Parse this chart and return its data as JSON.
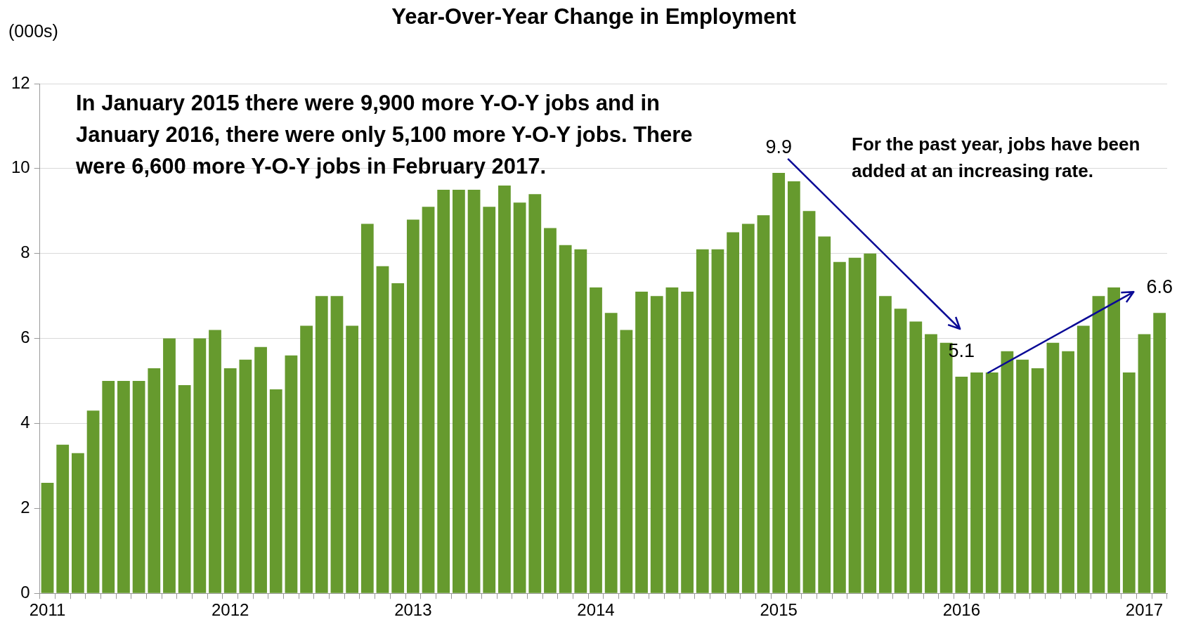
{
  "chart_data": {
    "type": "bar",
    "title": "Year-Over-Year Change in Employment",
    "ylabel": "(000s)",
    "categories": [
      "2011",
      null,
      null,
      null,
      null,
      null,
      null,
      null,
      null,
      null,
      null,
      null,
      "2012",
      null,
      null,
      null,
      null,
      null,
      null,
      null,
      null,
      null,
      null,
      null,
      "2013",
      null,
      null,
      null,
      null,
      null,
      null,
      null,
      null,
      null,
      null,
      null,
      "2014",
      null,
      null,
      null,
      null,
      null,
      null,
      null,
      null,
      null,
      null,
      null,
      "2015",
      null,
      null,
      null,
      null,
      null,
      null,
      null,
      null,
      null,
      null,
      null,
      "2016",
      null,
      null,
      null,
      null,
      null,
      null,
      null,
      null,
      null,
      null,
      null,
      "2017",
      null
    ],
    "values": [
      2.6,
      3.5,
      3.3,
      4.3,
      5.0,
      5.0,
      5.0,
      5.3,
      6.0,
      4.9,
      6.0,
      6.2,
      5.3,
      5.5,
      5.8,
      4.8,
      5.6,
      6.3,
      7.0,
      7.0,
      6.3,
      8.7,
      7.7,
      7.3,
      8.8,
      9.1,
      9.5,
      9.5,
      9.5,
      9.1,
      9.6,
      9.2,
      9.4,
      8.6,
      8.2,
      8.1,
      7.2,
      6.6,
      6.2,
      7.1,
      7.0,
      7.2,
      7.1,
      8.1,
      8.1,
      8.5,
      8.7,
      8.9,
      9.9,
      9.7,
      9.0,
      8.4,
      7.8,
      7.9,
      8.0,
      7.0,
      6.7,
      6.4,
      6.1,
      5.9,
      5.1,
      5.2,
      5.2,
      5.7,
      5.5,
      5.3,
      5.9,
      5.7,
      6.3,
      7.0,
      7.2,
      5.2,
      6.1,
      6.6
    ],
    "value_labels": [
      null,
      null,
      null,
      null,
      null,
      null,
      null,
      null,
      null,
      null,
      null,
      null,
      null,
      null,
      null,
      null,
      null,
      null,
      null,
      null,
      null,
      null,
      null,
      null,
      null,
      null,
      null,
      null,
      null,
      null,
      null,
      null,
      null,
      null,
      null,
      null,
      null,
      null,
      null,
      null,
      null,
      null,
      null,
      null,
      null,
      null,
      null,
      null,
      "9.9",
      null,
      null,
      null,
      null,
      null,
      null,
      null,
      null,
      null,
      null,
      null,
      "5.1",
      null,
      null,
      null,
      null,
      null,
      null,
      null,
      null,
      null,
      null,
      null,
      null,
      "6.6"
    ],
    "color": "#669a2e",
    "ylim": [
      0,
      12
    ],
    "yticks": [
      0,
      2,
      4,
      6,
      8,
      10,
      12
    ],
    "grid": "y",
    "annotations": [
      "In January 2015 there were 9,900 more Y-O-Y jobs and in January 2016, there were only 5,100 more Y-O-Y jobs. There were 6,600 more Y-O-Y jobs in February 2017.",
      "For the past year, jobs have been added at an increasing rate."
    ]
  }
}
